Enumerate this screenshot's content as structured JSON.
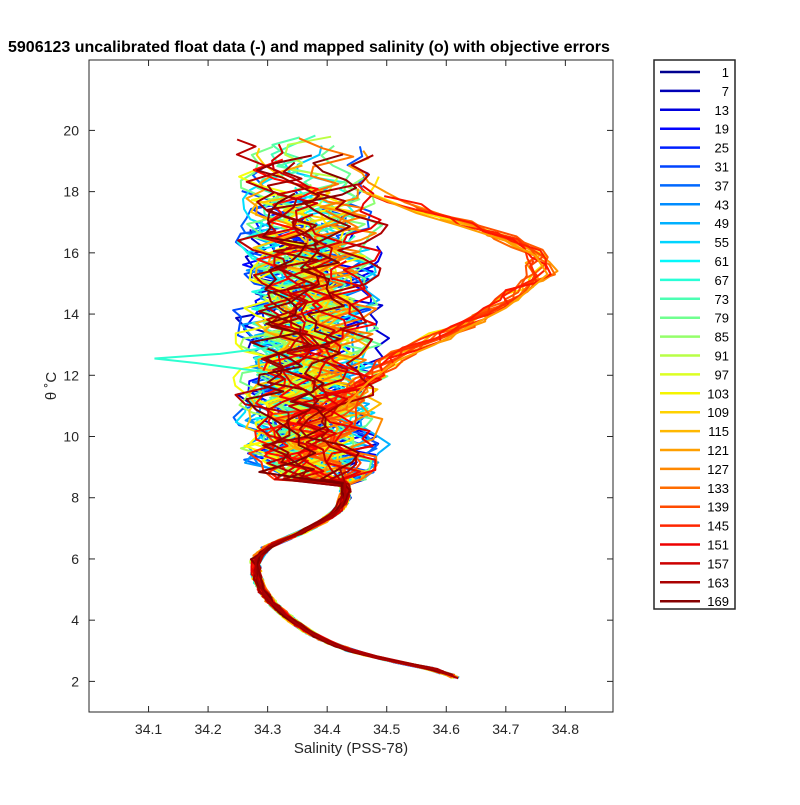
{
  "chart_data": {
    "type": "line",
    "title": "5906123 uncalibrated float data (-) and mapped salinity (o) with objective errors",
    "xlabel": "Salinity (PSS-78)",
    "ylabel": "θ ˚C",
    "xlim": [
      34.0,
      34.88
    ],
    "ylim": [
      1.0,
      22.3
    ],
    "xticks": [
      "34.1",
      "34.2",
      "34.3",
      "34.4",
      "34.5",
      "34.6",
      "34.7",
      "34.8"
    ],
    "xtick_values": [
      34.1,
      34.2,
      34.3,
      34.4,
      34.5,
      34.6,
      34.7,
      34.8
    ],
    "yticks": [
      "2",
      "4",
      "6",
      "8",
      "10",
      "12",
      "14",
      "16",
      "18",
      "20"
    ],
    "ytick_values": [
      2,
      4,
      6,
      8,
      10,
      12,
      14,
      16,
      18,
      20
    ],
    "grid": false,
    "legend_position": "outside-right",
    "colormap": "jet",
    "deep_profile": {
      "salinity": [
        34.62,
        34.58,
        34.5,
        34.44,
        34.4,
        34.37,
        34.34,
        34.31,
        34.29,
        34.28,
        34.28,
        34.3,
        34.35,
        34.39,
        34.42,
        34.43,
        34.43,
        34.42
      ],
      "theta": [
        2.1,
        2.4,
        2.7,
        3.0,
        3.3,
        3.6,
        4.0,
        4.5,
        5.0,
        5.5,
        6.0,
        6.4,
        6.8,
        7.2,
        7.6,
        8.0,
        8.5,
        9.0
      ]
    },
    "warm_branch": {
      "salinity": [
        34.43,
        34.47,
        34.52,
        34.58,
        34.64,
        34.7,
        34.74,
        34.77,
        34.75,
        34.7,
        34.62,
        34.55,
        34.5,
        34.46
      ],
      "theta": [
        11.0,
        11.8,
        12.5,
        13.0,
        13.6,
        14.2,
        14.8,
        15.3,
        15.9,
        16.4,
        16.9,
        17.3,
        17.7,
        18.0
      ]
    },
    "fresh_excursion": {
      "salinity": [
        34.3,
        34.22,
        34.11,
        34.18,
        34.26,
        34.3
      ],
      "theta": [
        12.9,
        12.7,
        12.55,
        12.4,
        12.2,
        12.1
      ]
    },
    "series": [
      {
        "name": "1",
        "color": "#00008f"
      },
      {
        "name": "7",
        "color": "#0000b6"
      },
      {
        "name": "13",
        "color": "#0000dd"
      },
      {
        "name": "19",
        "color": "#0404ff"
      },
      {
        "name": "25",
        "color": "#0020ff"
      },
      {
        "name": "31",
        "color": "#0044ff"
      },
      {
        "name": "37",
        "color": "#0068ff"
      },
      {
        "name": "43",
        "color": "#008cff"
      },
      {
        "name": "49",
        "color": "#00b0ff"
      },
      {
        "name": "55",
        "color": "#00d4ff"
      },
      {
        "name": "61",
        "color": "#04f8fb"
      },
      {
        "name": "67",
        "color": "#28ffd7"
      },
      {
        "name": "73",
        "color": "#4cffb3"
      },
      {
        "name": "79",
        "color": "#70ff8f"
      },
      {
        "name": "85",
        "color": "#94ff6b"
      },
      {
        "name": "91",
        "color": "#b8ff47"
      },
      {
        "name": "97",
        "color": "#dcff23"
      },
      {
        "name": "103",
        "color": "#f4f400"
      },
      {
        "name": "109",
        "color": "#ffd200"
      },
      {
        "name": "115",
        "color": "#ffb800"
      },
      {
        "name": "121",
        "color": "#ff9f00"
      },
      {
        "name": "127",
        "color": "#ff8800"
      },
      {
        "name": "133",
        "color": "#ff6c00"
      },
      {
        "name": "139",
        "color": "#ff4a00"
      },
      {
        "name": "145",
        "color": "#ff2600"
      },
      {
        "name": "151",
        "color": "#ee0000"
      },
      {
        "name": "157",
        "color": "#cc0000"
      },
      {
        "name": "163",
        "color": "#aa0000"
      },
      {
        "name": "169",
        "color": "#860000"
      }
    ]
  }
}
